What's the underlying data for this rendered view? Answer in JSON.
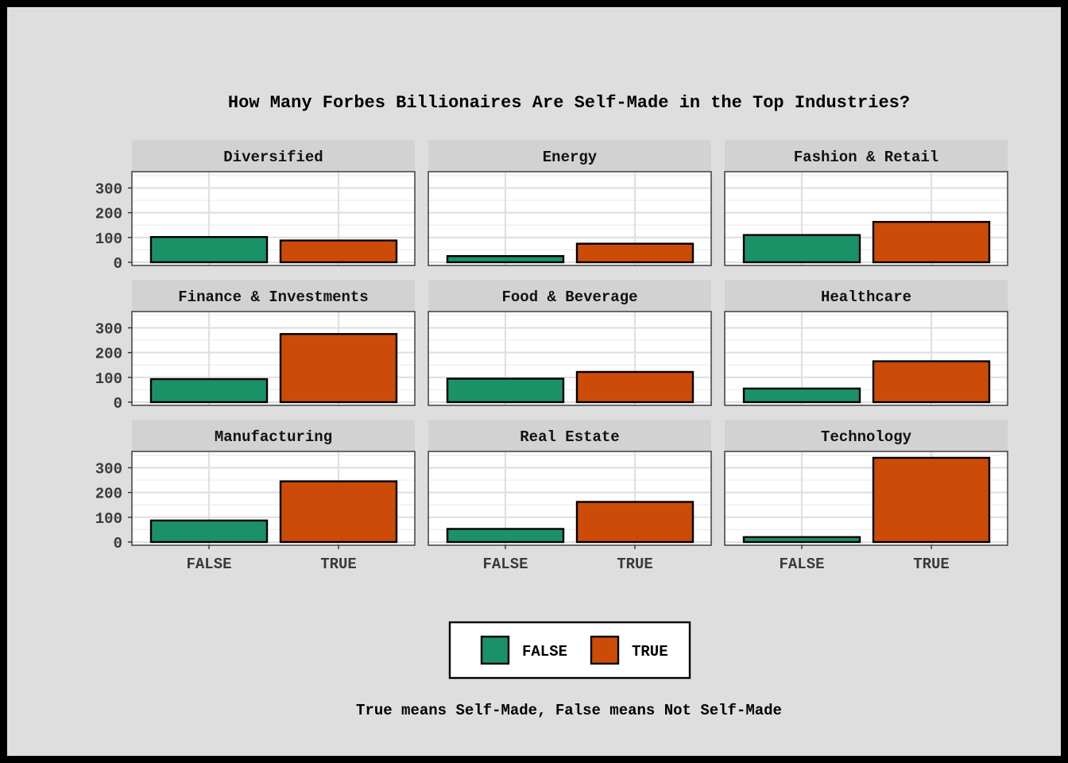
{
  "chart_data": {
    "type": "bar",
    "title": "How Many Forbes Billionaires Are Self-Made in the Top Industries?",
    "caption": "True means Self-Made, False means Not Self-Made",
    "categories": [
      "FALSE",
      "TRUE"
    ],
    "ylim": [
      0,
      350
    ],
    "yticks": [
      0,
      100,
      200,
      300
    ],
    "grid": true,
    "legend": {
      "position": "bottom",
      "entries": [
        {
          "label": "FALSE",
          "color": "#1b9168"
        },
        {
          "label": "TRUE",
          "color": "#cc4b08"
        }
      ]
    },
    "facets": [
      {
        "name": "Diversified",
        "values": [
          102,
          88
        ]
      },
      {
        "name": "Energy",
        "values": [
          25,
          75
        ]
      },
      {
        "name": "Fashion & Retail",
        "values": [
          110,
          163
        ]
      },
      {
        "name": "Finance & Investments",
        "values": [
          93,
          275
        ]
      },
      {
        "name": "Food & Beverage",
        "values": [
          95,
          122
        ]
      },
      {
        "name": "Healthcare",
        "values": [
          55,
          165
        ]
      },
      {
        "name": "Manufacturing",
        "values": [
          87,
          245
        ]
      },
      {
        "name": "Real Estate",
        "values": [
          53,
          162
        ]
      },
      {
        "name": "Technology",
        "values": [
          20,
          340
        ]
      }
    ]
  }
}
